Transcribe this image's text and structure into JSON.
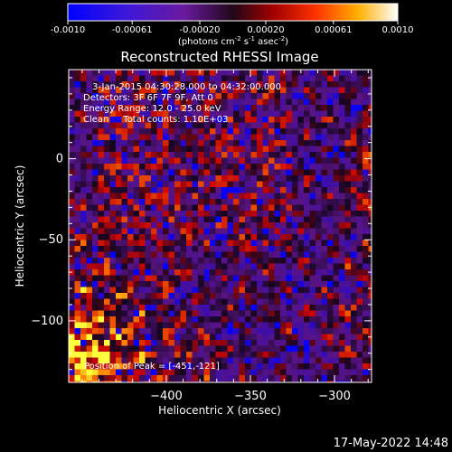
{
  "colorbar": {
    "ticks": [
      "-0.0010",
      "-0.00061",
      "-0.00020",
      "0.00020",
      "0.00061",
      "0.0010"
    ],
    "tick_values": [
      -0.001,
      -0.00061,
      -0.0002,
      0.0002,
      0.00061,
      0.001
    ],
    "range": [
      -0.001,
      0.001
    ],
    "label_base": "(photons cm",
    "label_exp1": "-2",
    "label_mid": " s",
    "label_exp2": "-1",
    "label_end": " asec",
    "label_exp3": "-2",
    "label_close": ")"
  },
  "chart_data": {
    "type": "heatmap",
    "title": "Reconstructed RHESSI Image",
    "xlabel": "Heliocentric X (arcsec)",
    "ylabel": "Heliocentric Y (arcsec)",
    "xlim": [
      -458,
      -278
    ],
    "ylim": [
      -138,
      55
    ],
    "xticks": [
      -400,
      -350,
      -300
    ],
    "yticks": [
      0,
      -50,
      -100
    ],
    "annotations": [
      "3-Jan-2015 04:30:28.000 to 04:32:00.000",
      "Detectors: 3F 6F 7F 9F, Att 0",
      "Energy Range: 12.0 - 25.0 keV",
      "Clean     Total counts: 1.10E+03"
    ],
    "peak_label": "Position of Peak = [-451,-121]",
    "peak": [
      -451,
      -121
    ],
    "colormap": [
      "#0000ff",
      "#6000a8",
      "#3a1a55",
      "#000000",
      "#a01010",
      "#ff7000",
      "#ffff60",
      "#ffffff"
    ]
  },
  "footer": {
    "timestamp": "17-May-2022 14:48"
  }
}
